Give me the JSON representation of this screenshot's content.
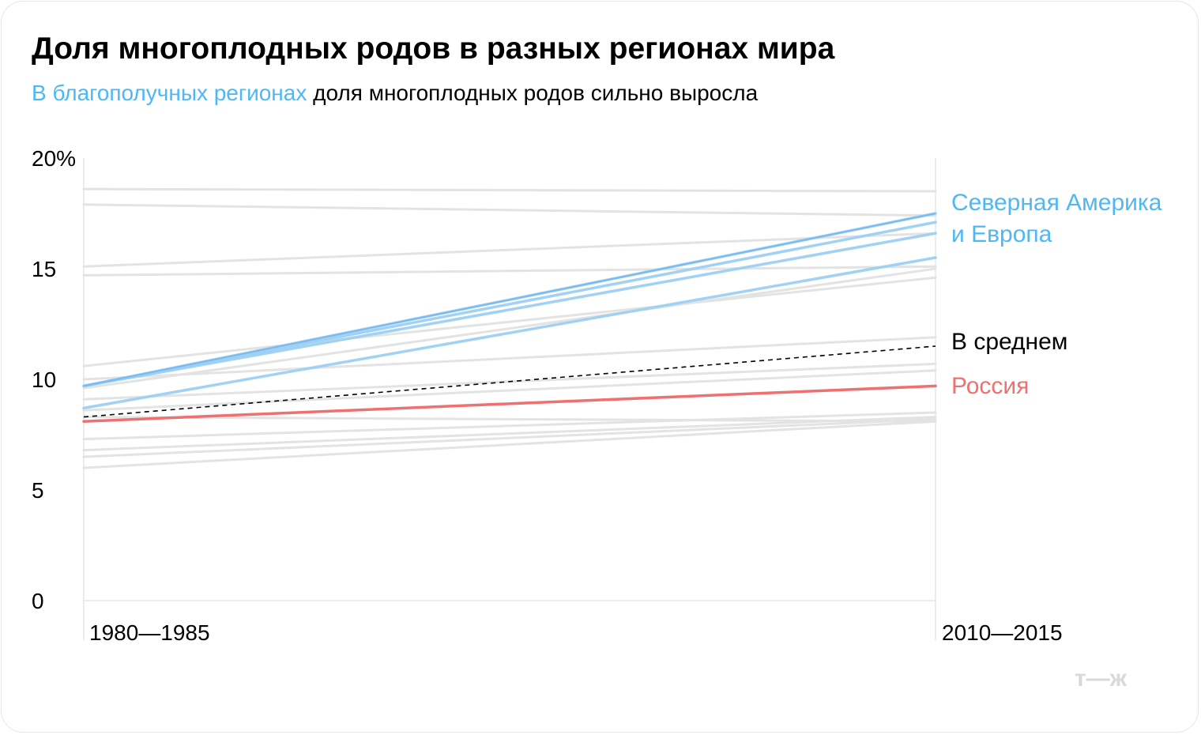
{
  "header": {
    "title": "Доля многоплодных родов в разных регионах мира",
    "subtitle_highlight": "В благополучных регионах",
    "subtitle_rest": " доля многоплодных родов сильно выросла"
  },
  "colors": {
    "highlight": "#4db8f5",
    "europe_lines": "#9ccff2",
    "europe_lines_dark": "#5aa9ec",
    "russia": "#ef7070",
    "background_lines": "#e3e3e3",
    "average": "#000000"
  },
  "logo": "т—ж",
  "chart_data": {
    "type": "line",
    "x": [
      "1980—1985",
      "2010—2015"
    ],
    "ylim": [
      0,
      20
    ],
    "yticks": [
      0,
      5,
      10,
      15,
      20
    ],
    "ytick_labels": [
      "0",
      "5",
      "10",
      "15",
      "20%"
    ],
    "grid": false,
    "annotations": {
      "europe": [
        "Северная Америка",
        "и Европа"
      ],
      "average": "В среднем",
      "russia": "Россия"
    },
    "series": [
      {
        "group": "other",
        "values": [
          18.6,
          18.5
        ]
      },
      {
        "group": "other",
        "values": [
          17.9,
          17.4
        ]
      },
      {
        "group": "other",
        "values": [
          15.1,
          16.6
        ]
      },
      {
        "group": "other",
        "values": [
          14.7,
          15.1
        ]
      },
      {
        "group": "other",
        "values": [
          10.6,
          14.6
        ]
      },
      {
        "group": "other",
        "values": [
          9.6,
          15.0
        ]
      },
      {
        "group": "other",
        "values": [
          10.0,
          11.9
        ]
      },
      {
        "group": "other",
        "values": [
          9.1,
          10.7
        ]
      },
      {
        "group": "other",
        "values": [
          8.6,
          10.4
        ]
      },
      {
        "group": "other",
        "values": [
          8.3,
          8.1
        ]
      },
      {
        "group": "other",
        "values": [
          7.3,
          8.5
        ]
      },
      {
        "group": "other",
        "values": [
          6.8,
          8.3
        ]
      },
      {
        "group": "other",
        "values": [
          6.5,
          8.2
        ]
      },
      {
        "group": "other",
        "values": [
          6.0,
          8.1
        ]
      },
      {
        "group": "europe",
        "values": [
          9.7,
          17.5
        ]
      },
      {
        "group": "europe",
        "values": [
          9.7,
          17.1
        ]
      },
      {
        "group": "europe",
        "values": [
          9.7,
          16.6
        ]
      },
      {
        "group": "europe",
        "values": [
          8.7,
          15.5
        ]
      },
      {
        "group": "russia",
        "name": "Россия",
        "values": [
          8.1,
          9.7
        ]
      },
      {
        "group": "average",
        "name": "В среднем",
        "values": [
          8.3,
          11.5
        ]
      }
    ]
  }
}
